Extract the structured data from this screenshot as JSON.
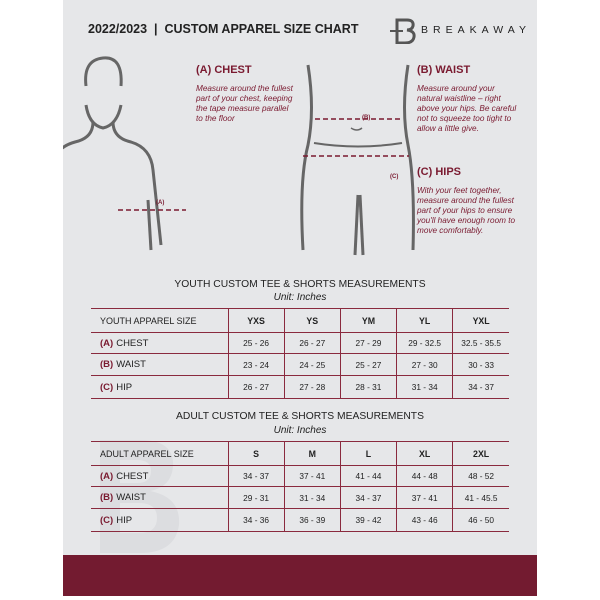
{
  "header": {
    "title": "2022/2023  |  CUSTOM APPAREL SIZE CHART",
    "brand": "BREAKAWAY",
    "logo_letter": "B"
  },
  "guide": {
    "chest": {
      "heading": "(A) CHEST",
      "text": "Measure around the fullest part of your chest, keeping the tape measure parallel to the floor",
      "tag": "(A)"
    },
    "waist": {
      "heading": "(B) WAIST",
      "text": "Measure around your natural waistline – right above your hips. Be careful not to squeeze too tight to allow a little give.",
      "tag": "(B)"
    },
    "hips": {
      "heading": "(C) HIPS",
      "text": "With your feet together, measure around the fullest part of your hips to ensure you'll have enough room to move comfortably.",
      "tag": "(C)"
    }
  },
  "youth": {
    "title": "YOUTH CUSTOM TEE & SHORTS MEASUREMENTS",
    "unit": "Unit: Inches",
    "header": "YOUTH APPAREL SIZE",
    "sizes": [
      "YXS",
      "YS",
      "YM",
      "YL",
      "YXL"
    ],
    "rows": [
      {
        "letter": "(A)",
        "name": "CHEST",
        "values": [
          "25 - 26",
          "26 - 27",
          "27 - 29",
          "29 - 32.5",
          "32.5 - 35.5"
        ]
      },
      {
        "letter": "(B)",
        "name": "WAIST",
        "values": [
          "23 - 24",
          "24 - 25",
          "25 - 27",
          "27 - 30",
          "30 - 33"
        ]
      },
      {
        "letter": "(C)",
        "name": "HIP",
        "values": [
          "26 - 27",
          "27 - 28",
          "28 - 31",
          "31 - 34",
          "34 - 37"
        ]
      }
    ]
  },
  "adult": {
    "title": "ADULT CUSTOM TEE & SHORTS MEASUREMENTS",
    "unit": "Unit: Inches",
    "header": "ADULT APPAREL SIZE",
    "sizes": [
      "S",
      "M",
      "L",
      "XL",
      "2XL"
    ],
    "rows": [
      {
        "letter": "(A)",
        "name": "CHEST",
        "values": [
          "34 - 37",
          "37 - 41",
          "41 - 44",
          "44 - 48",
          "48 - 52"
        ]
      },
      {
        "letter": "(B)",
        "name": "WAIST",
        "values": [
          "29 - 31",
          "31 - 34",
          "34 - 37",
          "37 - 41",
          "41 - 45.5"
        ]
      },
      {
        "letter": "(C)",
        "name": "HIP",
        "values": [
          "34 - 36",
          "36 - 39",
          "39 - 42",
          "43 - 46",
          "46 - 50"
        ]
      }
    ]
  },
  "colors": {
    "accent": "#731b30",
    "panel": "#e6e7e9"
  }
}
